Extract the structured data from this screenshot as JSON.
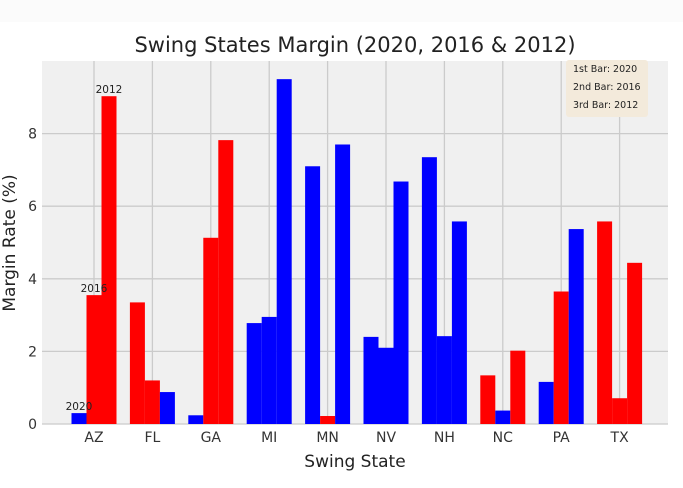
{
  "chart_data": {
    "type": "bar",
    "title": "Swing States Margin (2020, 2016 & 2012)",
    "xlabel": "Swing State",
    "ylabel": "Margin Rate (%)",
    "ylim": [
      0,
      10
    ],
    "yticks": [
      0,
      2,
      4,
      6,
      8
    ],
    "grid": true,
    "categories": [
      "AZ",
      "FL",
      "GA",
      "MI",
      "MN",
      "NV",
      "NH",
      "NC",
      "PA",
      "TX"
    ],
    "series": [
      {
        "name": "2020",
        "values": [
          0.3,
          3.35,
          0.24,
          2.78,
          7.1,
          2.4,
          7.35,
          1.34,
          1.16,
          5.58
        ],
        "colors": [
          "blue",
          "red",
          "blue",
          "blue",
          "blue",
          "blue",
          "blue",
          "red",
          "blue",
          "red"
        ]
      },
      {
        "name": "2016",
        "values": [
          3.55,
          1.2,
          5.13,
          2.95,
          0.22,
          2.1,
          2.42,
          0.37,
          3.65,
          0.71
        ],
        "colors": [
          "red",
          "red",
          "red",
          "blue",
          "red",
          "blue",
          "blue",
          "blue",
          "red",
          "red"
        ]
      },
      {
        "name": "2012",
        "values": [
          9.03,
          0.88,
          7.82,
          9.5,
          7.7,
          6.68,
          5.58,
          2.02,
          5.37,
          4.44
        ],
        "colors": [
          "red",
          "blue",
          "red",
          "blue",
          "blue",
          "blue",
          "blue",
          "red",
          "blue",
          "red"
        ]
      }
    ],
    "bar_annotations": [
      {
        "category": "AZ",
        "series": 0,
        "text": "2020"
      },
      {
        "category": "AZ",
        "series": 1,
        "text": "2016"
      },
      {
        "category": "AZ",
        "series": 2,
        "text": "2012"
      }
    ],
    "legend_text": [
      "1st Bar: 2020",
      "2nd Bar: 2016",
      "3rd Bar: 2012"
    ],
    "legend_position": "top-right",
    "colors": {
      "blue": "#0000ff",
      "red": "#ff0000",
      "plot_bg": "#f0f0f0",
      "grid": "#cbcbcb"
    }
  }
}
